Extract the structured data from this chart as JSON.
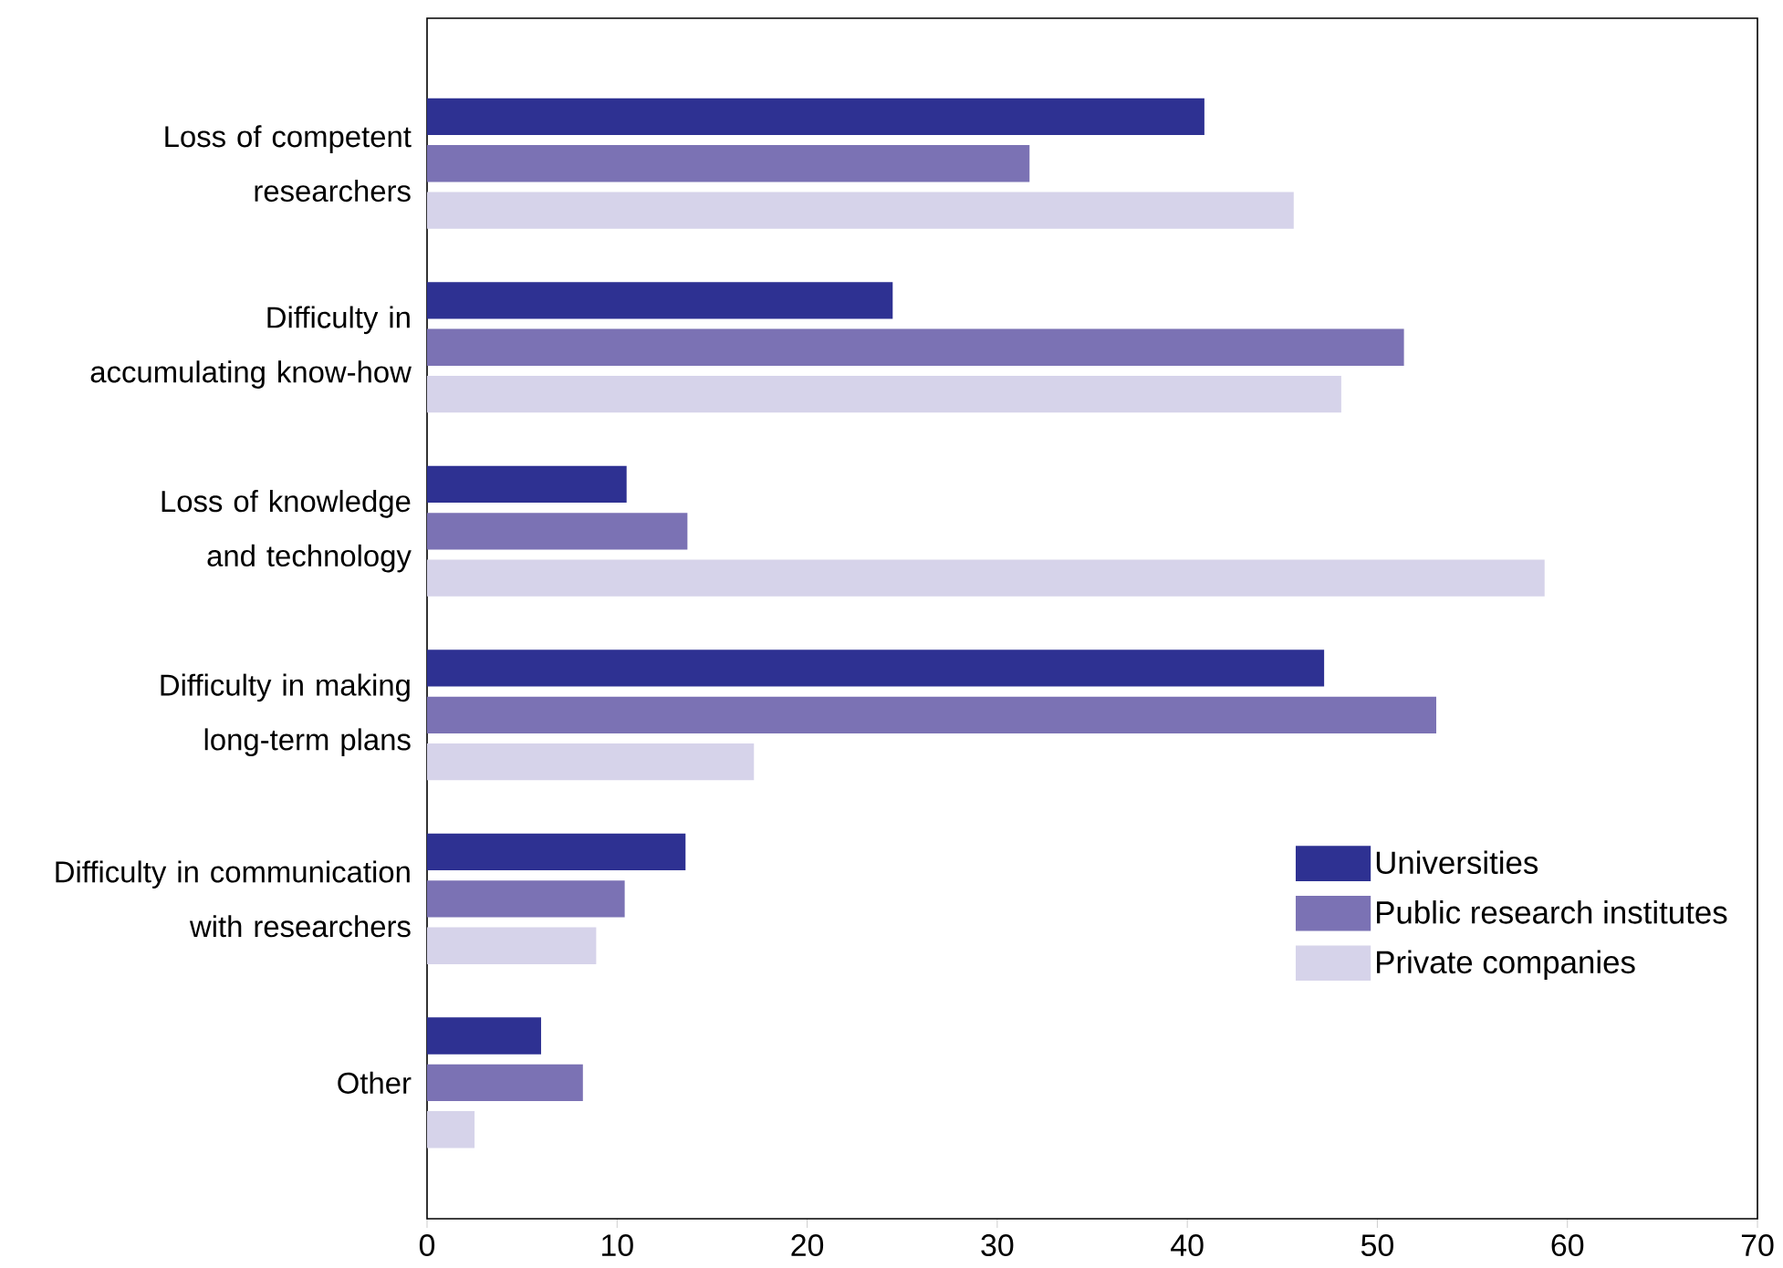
{
  "chart_data": {
    "type": "bar",
    "orientation": "horizontal",
    "categories": [
      "Loss of competent researchers",
      "Difficulty in accumulating know-how",
      "Loss of knowledge and technology",
      "Difficulty in making long-term plans",
      "Difficulty in communication with researchers",
      "Other"
    ],
    "series": [
      {
        "name": "Universities",
        "color": "#2e3192",
        "values": [
          40.9,
          24.5,
          10.5,
          47.2,
          13.6,
          6.0
        ]
      },
      {
        "name": "Public research institutes",
        "color": "#7b72b4",
        "values": [
          31.7,
          51.4,
          13.7,
          53.1,
          10.4,
          8.2
        ]
      },
      {
        "name": "Private companies",
        "color": "#d6d3ea",
        "values": [
          45.6,
          48.1,
          58.8,
          17.2,
          8.9,
          2.5
        ]
      }
    ],
    "xlim": [
      0,
      70
    ],
    "xticks": [
      0,
      10,
      20,
      30,
      40,
      50,
      60,
      70
    ],
    "legend": "bottom right",
    "grid": false
  }
}
